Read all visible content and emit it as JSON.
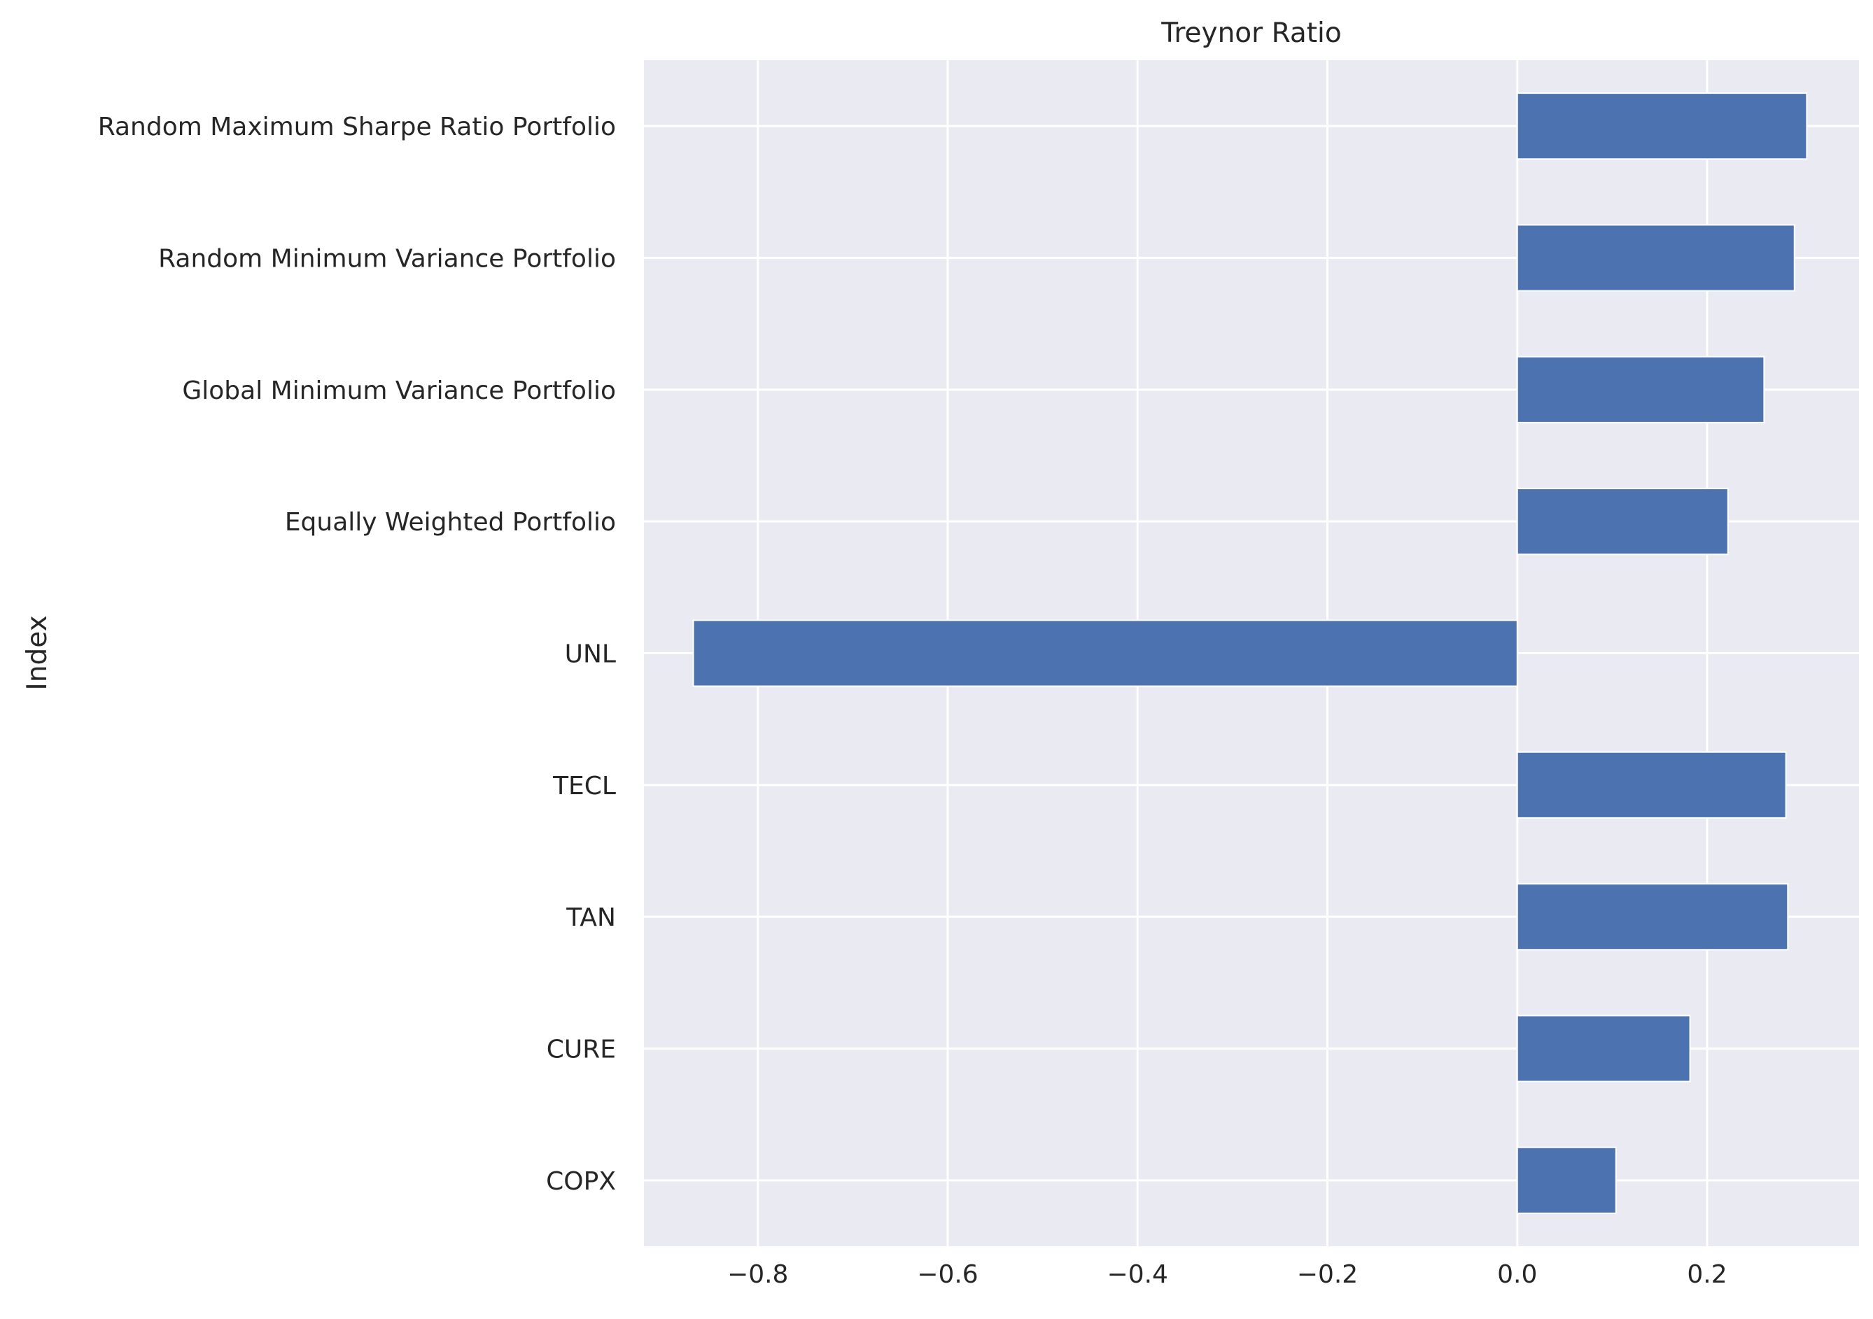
{
  "chart_data": {
    "type": "bar",
    "orientation": "horizontal",
    "title": "Treynor Ratio",
    "xlabel": "",
    "ylabel": "Index",
    "categories": [
      "Random Maximum Sharpe Ratio Portfolio",
      "Random Minimum Variance Portfolio",
      "Global Minimum Variance Portfolio",
      "Equally Weighted Portfolio",
      "UNL",
      "TECL",
      "TAN",
      "CURE",
      "COPX"
    ],
    "values": [
      0.305,
      0.292,
      0.26,
      0.222,
      -0.868,
      0.283,
      0.285,
      0.182,
      0.104
    ],
    "xlim": [
      -0.92,
      0.36
    ],
    "xticks": [
      -0.8,
      -0.6,
      -0.4,
      -0.2,
      0.0,
      0.2
    ],
    "xtick_labels": [
      "−0.8",
      "−0.6",
      "−0.4",
      "−0.2",
      "0.0",
      "0.2"
    ],
    "grid": true,
    "legend": false,
    "colors": {
      "bar": "#4c72b0",
      "background": "#eaeaf2",
      "grid": "#ffffff",
      "text": "#262626"
    }
  }
}
